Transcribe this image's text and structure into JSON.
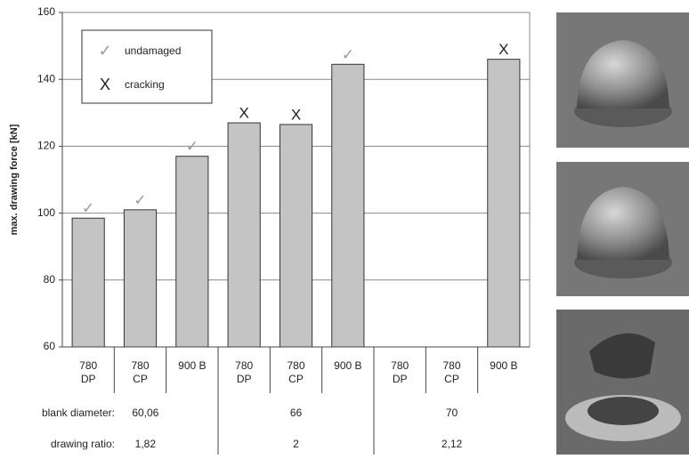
{
  "chart_data": {
    "type": "bar",
    "y_label": "max. drawing force [kN]",
    "categories": [
      [
        "780",
        "DP"
      ],
      [
        "780",
        "CP"
      ],
      [
        "900 B"
      ],
      [
        "780",
        "DP"
      ],
      [
        "780",
        "CP"
      ],
      [
        "900 B"
      ],
      [
        "780",
        "DP"
      ],
      [
        "780",
        "CP"
      ],
      [
        "900 B"
      ]
    ],
    "values": [
      98.5,
      101,
      117,
      127,
      126.5,
      144.5,
      null,
      null,
      146
    ],
    "status": [
      0,
      0,
      0,
      1,
      1,
      0,
      null,
      null,
      1
    ],
    "legend": [
      {
        "symbol": "✓",
        "label": "undamaged"
      },
      {
        "symbol": "X",
        "label": "cracking"
      }
    ],
    "color": "#c4c4c4",
    "ylim": [
      60,
      160
    ],
    "yticks": [
      60,
      80,
      100,
      120,
      140,
      160
    ],
    "grid": true,
    "row_labels": [
      "blank diameter:",
      "drawing ratio:"
    ],
    "groups": [
      {
        "blank_diameter": "60,06",
        "drawing_ratio": "1,82"
      },
      {
        "blank_diameter": "66",
        "drawing_ratio": "2"
      },
      {
        "blank_diameter": "70",
        "drawing_ratio": "2,12"
      }
    ]
  }
}
